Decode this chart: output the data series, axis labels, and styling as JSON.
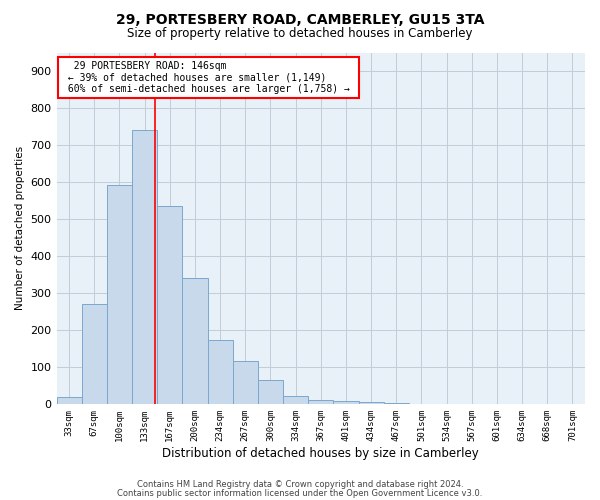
{
  "title": "29, PORTESBERY ROAD, CAMBERLEY, GU15 3TA",
  "subtitle": "Size of property relative to detached houses in Camberley",
  "xlabel": "Distribution of detached houses by size in Camberley",
  "ylabel": "Number of detached properties",
  "categories": [
    "33sqm",
    "67sqm",
    "100sqm",
    "133sqm",
    "167sqm",
    "200sqm",
    "234sqm",
    "267sqm",
    "300sqm",
    "334sqm",
    "367sqm",
    "401sqm",
    "434sqm",
    "467sqm",
    "501sqm",
    "534sqm",
    "567sqm",
    "601sqm",
    "634sqm",
    "668sqm",
    "701sqm"
  ],
  "bar_heights": [
    20,
    272,
    593,
    740,
    535,
    340,
    175,
    118,
    65,
    22,
    12,
    8,
    5,
    3,
    2,
    1,
    1,
    0,
    1,
    0,
    0
  ],
  "bar_color": "#c9d9ec",
  "bar_edge_color": "#7aa8cc",
  "property_line_x": 3.42,
  "annotation_text_line1": "29 PORTESBERY ROAD: 146sqm",
  "annotation_text_line2": "← 39% of detached houses are smaller (1,149)",
  "annotation_text_line3": "60% of semi-detached houses are larger (1,758) →",
  "footer_line1": "Contains HM Land Registry data © Crown copyright and database right 2024.",
  "footer_line2": "Contains public sector information licensed under the Open Government Licence v3.0.",
  "background_color": "#ffffff",
  "plot_bg_color": "#e8f0f8",
  "grid_color": "#c0ccd8",
  "ylim": [
    0,
    950
  ],
  "yticks": [
    0,
    100,
    200,
    300,
    400,
    500,
    600,
    700,
    800,
    900
  ]
}
